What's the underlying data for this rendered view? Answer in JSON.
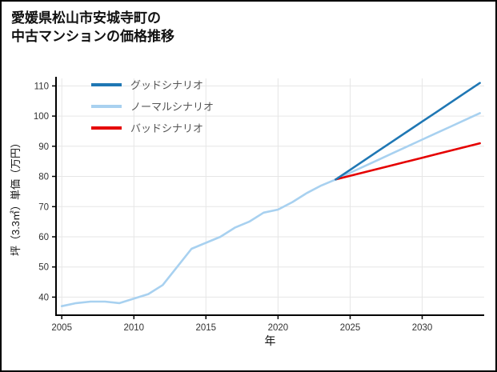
{
  "title": {
    "line1": "愛媛県松山市安城寺町の",
    "line2": "中古マンションの価格推移"
  },
  "colors": {
    "background": "#ffffff",
    "page_border": "#000000",
    "axis": "#000000",
    "grid": "#e6e6e6",
    "tick_label": "#333333",
    "legend_text": "#555555",
    "title_text": "#111111"
  },
  "chart_data": {
    "type": "line",
    "title": "愛媛県松山市安城寺町の中古マンションの価格推移",
    "xlabel": "年",
    "ylabel": "坪（3.3㎡）単価（万円）",
    "xlim": [
      2004.6,
      2034.3
    ],
    "ylim": [
      34,
      112.5
    ],
    "xticks": [
      2005,
      2010,
      2015,
      2020,
      2025,
      2030
    ],
    "yticks": [
      40,
      50,
      60,
      70,
      80,
      90,
      100,
      110
    ],
    "grid": true,
    "legend_position": "upper-left-inside",
    "draw_order": [
      1,
      2,
      0
    ],
    "series": [
      {
        "id": "good-scenario",
        "name": "グッドシナリオ",
        "color": "#1f77b4",
        "x": [
          2024,
          2025,
          2026,
          2027,
          2028,
          2029,
          2030,
          2031,
          2032,
          2033,
          2034
        ],
        "y": [
          79,
          82.2,
          85.4,
          88.6,
          91.8,
          95,
          98.2,
          101.4,
          104.6,
          107.8,
          111
        ]
      },
      {
        "id": "normal-scenario",
        "name": "ノーマルシナリオ",
        "color": "#a8d1f0",
        "x": [
          2005,
          2006,
          2007,
          2008,
          2009,
          2010,
          2011,
          2012,
          2013,
          2014,
          2015,
          2016,
          2017,
          2018,
          2019,
          2020,
          2021,
          2022,
          2023,
          2024,
          2025,
          2026,
          2027,
          2028,
          2029,
          2030,
          2031,
          2032,
          2033,
          2034
        ],
        "y": [
          37,
          38,
          38.5,
          38.5,
          38,
          39.5,
          41,
          44,
          50,
          56,
          58,
          60,
          63,
          65,
          68,
          69,
          71.5,
          74.5,
          77,
          79,
          81.2,
          83.4,
          85.6,
          87.8,
          90,
          92.2,
          94.4,
          96.6,
          98.8,
          101
        ]
      },
      {
        "id": "bad-scenario",
        "name": "バッドシナリオ",
        "color": "#e50000",
        "x": [
          2024,
          2025,
          2026,
          2027,
          2028,
          2029,
          2030,
          2031,
          2032,
          2033,
          2034
        ],
        "y": [
          79,
          80.2,
          81.4,
          82.6,
          83.8,
          85,
          86.2,
          87.4,
          88.6,
          89.8,
          91
        ]
      }
    ]
  }
}
